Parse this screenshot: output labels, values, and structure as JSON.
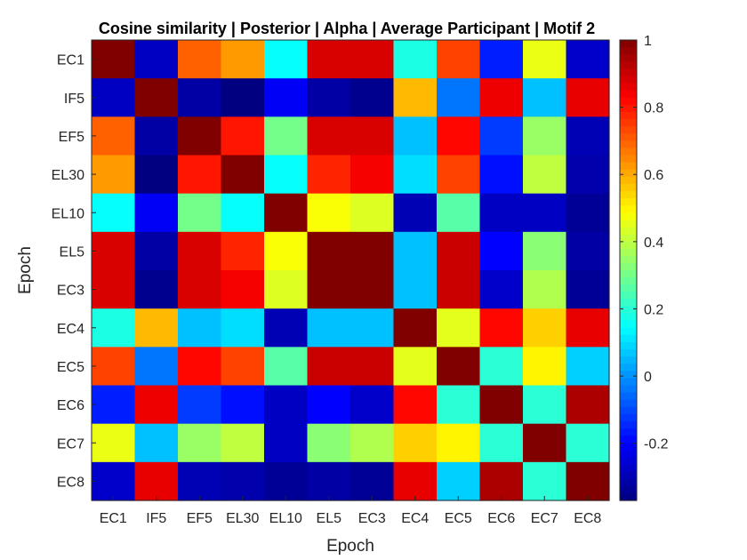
{
  "chart_data": {
    "type": "heatmap",
    "title": "Cosine similarity | Posterior | Alpha | Average Participant | Motif 2",
    "xlabel": "Epoch",
    "ylabel": "Epoch",
    "x_labels": [
      "EC1",
      "IF5",
      "EF5",
      "EL30",
      "EL10",
      "EL5",
      "EC3",
      "EC4",
      "EC5",
      "EC6",
      "EC7",
      "EC8"
    ],
    "y_labels": [
      "EC1",
      "IF5",
      "EF5",
      "EL30",
      "EL10",
      "EL5",
      "EC3",
      "EC4",
      "EC5",
      "EC6",
      "EC7",
      "EC8"
    ],
    "matrix": [
      [
        1.0,
        -0.28,
        0.7,
        0.62,
        0.15,
        0.88,
        0.88,
        0.18,
        0.74,
        -0.16,
        0.46,
        -0.27
      ],
      [
        -0.28,
        1.0,
        -0.32,
        -0.37,
        -0.21,
        -0.32,
        -0.35,
        0.58,
        -0.04,
        0.85,
        0.06,
        0.86
      ],
      [
        0.7,
        -0.32,
        1.0,
        0.8,
        0.3,
        0.88,
        0.88,
        0.06,
        0.82,
        -0.12,
        0.35,
        -0.3
      ],
      [
        0.62,
        -0.37,
        0.8,
        1.0,
        0.15,
        0.78,
        0.84,
        0.1,
        0.74,
        -0.18,
        0.4,
        -0.31
      ],
      [
        0.15,
        -0.21,
        0.3,
        0.15,
        1.0,
        0.48,
        0.44,
        -0.3,
        0.26,
        -0.28,
        -0.28,
        -0.34
      ],
      [
        0.88,
        -0.32,
        0.88,
        0.78,
        0.48,
        1.0,
        1.0,
        0.06,
        0.9,
        -0.2,
        0.33,
        -0.32
      ],
      [
        0.88,
        -0.35,
        0.88,
        0.84,
        0.44,
        1.0,
        1.0,
        0.06,
        0.9,
        -0.27,
        0.38,
        -0.34
      ],
      [
        0.18,
        0.58,
        0.06,
        0.1,
        -0.3,
        0.06,
        0.06,
        1.0,
        0.45,
        0.82,
        0.55,
        0.86
      ],
      [
        0.74,
        -0.04,
        0.82,
        0.74,
        0.26,
        0.9,
        0.9,
        0.45,
        1.0,
        0.2,
        0.5,
        0.08
      ],
      [
        -0.16,
        0.85,
        -0.12,
        -0.18,
        -0.28,
        -0.2,
        -0.27,
        0.82,
        0.2,
        1.0,
        0.2,
        0.94
      ],
      [
        0.46,
        0.06,
        0.35,
        0.4,
        -0.28,
        0.33,
        0.38,
        0.55,
        0.5,
        0.2,
        1.0,
        0.2
      ],
      [
        -0.27,
        0.86,
        -0.3,
        -0.31,
        -0.34,
        -0.32,
        -0.34,
        0.86,
        0.08,
        0.94,
        0.2,
        1.0
      ]
    ],
    "color_range": [
      -0.37,
      1.0
    ],
    "colormap": "jet",
    "colorbar_ticks": [
      -0.2,
      0,
      0.2,
      0.4,
      0.6,
      0.8,
      1
    ],
    "colorbar_tick_labels": [
      "-0.2",
      "0",
      "0.2",
      "0.4",
      "0.6",
      "0.8",
      "1"
    ],
    "grid": false,
    "colorbar_position": "right"
  }
}
